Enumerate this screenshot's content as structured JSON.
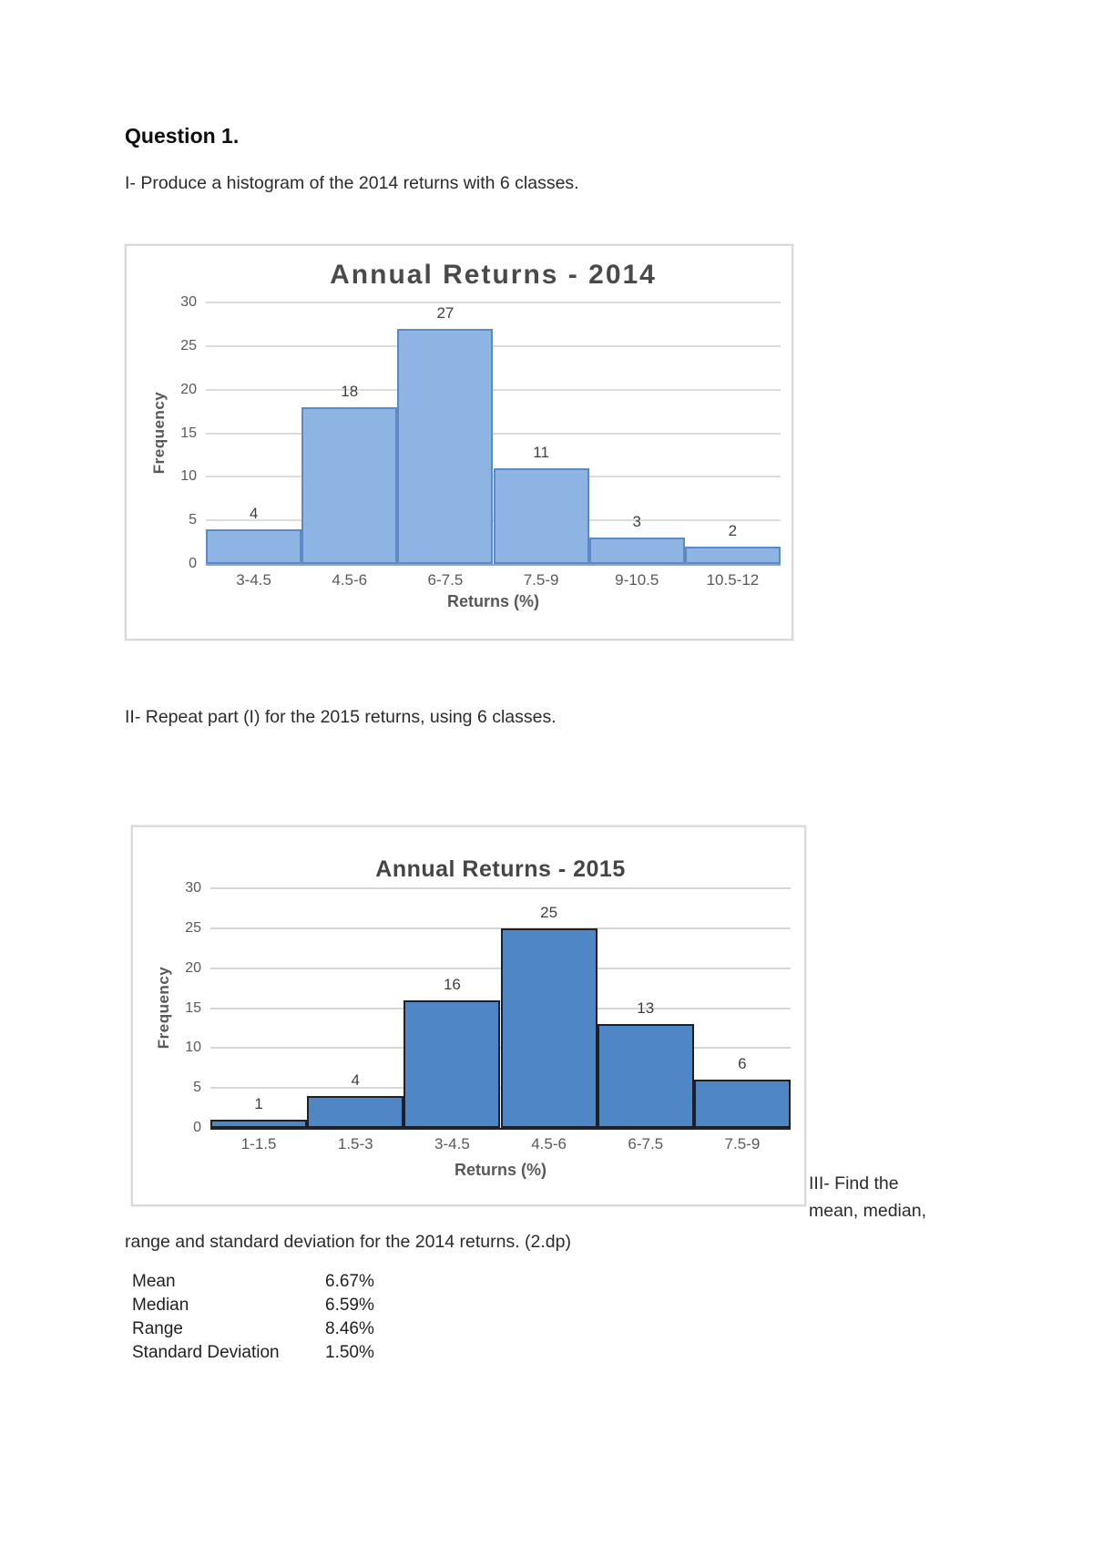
{
  "page": {
    "heading": "Question 1.",
    "part1_text": "I- Produce a histogram of the 2014 returns with 6 classes.",
    "part2_text": "II- Repeat part (I) for the 2015 returns, using 6 classes.",
    "part3_line1": "III- Find the",
    "part3_line2": "mean, median,",
    "part3_continuation": "range and standard deviation for the 2014 returns. (2.dp)"
  },
  "chart_data": [
    {
      "type": "bar",
      "title": "Annual Returns - 2014",
      "categories": [
        "3-4.5",
        "4.5-6",
        "6-7.5",
        "7.5-9",
        "9-10.5",
        "10.5-12"
      ],
      "values": [
        4,
        18,
        27,
        11,
        3,
        2
      ],
      "xlabel": "Returns (%)",
      "ylabel": "Frequency",
      "ylim": [
        0,
        30
      ],
      "ytick_step": 5,
      "grid": true,
      "legend": "none",
      "bar_fill": "#8eb4e3",
      "bar_stroke": "#5b8ac5"
    },
    {
      "type": "bar",
      "title": "Annual Returns - 2015",
      "categories": [
        "1-1.5",
        "1.5-3",
        "3-4.5",
        "4.5-6",
        "6-7.5",
        "7.5-9"
      ],
      "values": [
        1,
        4,
        16,
        25,
        13,
        6
      ],
      "xlabel": "Returns (%)",
      "ylabel": "Frequency",
      "ylim": [
        0,
        30
      ],
      "ytick_step": 5,
      "grid": true,
      "legend": "none",
      "bar_fill": "#4e86c6",
      "bar_stroke": "#1f1f28"
    }
  ],
  "stats": {
    "rows": [
      {
        "label": "Mean",
        "value": "6.67%"
      },
      {
        "label": "Median",
        "value": "6.59%"
      },
      {
        "label": "Range",
        "value": "8.46%"
      },
      {
        "label": "Standard Deviation",
        "value": "1.50%"
      }
    ]
  }
}
